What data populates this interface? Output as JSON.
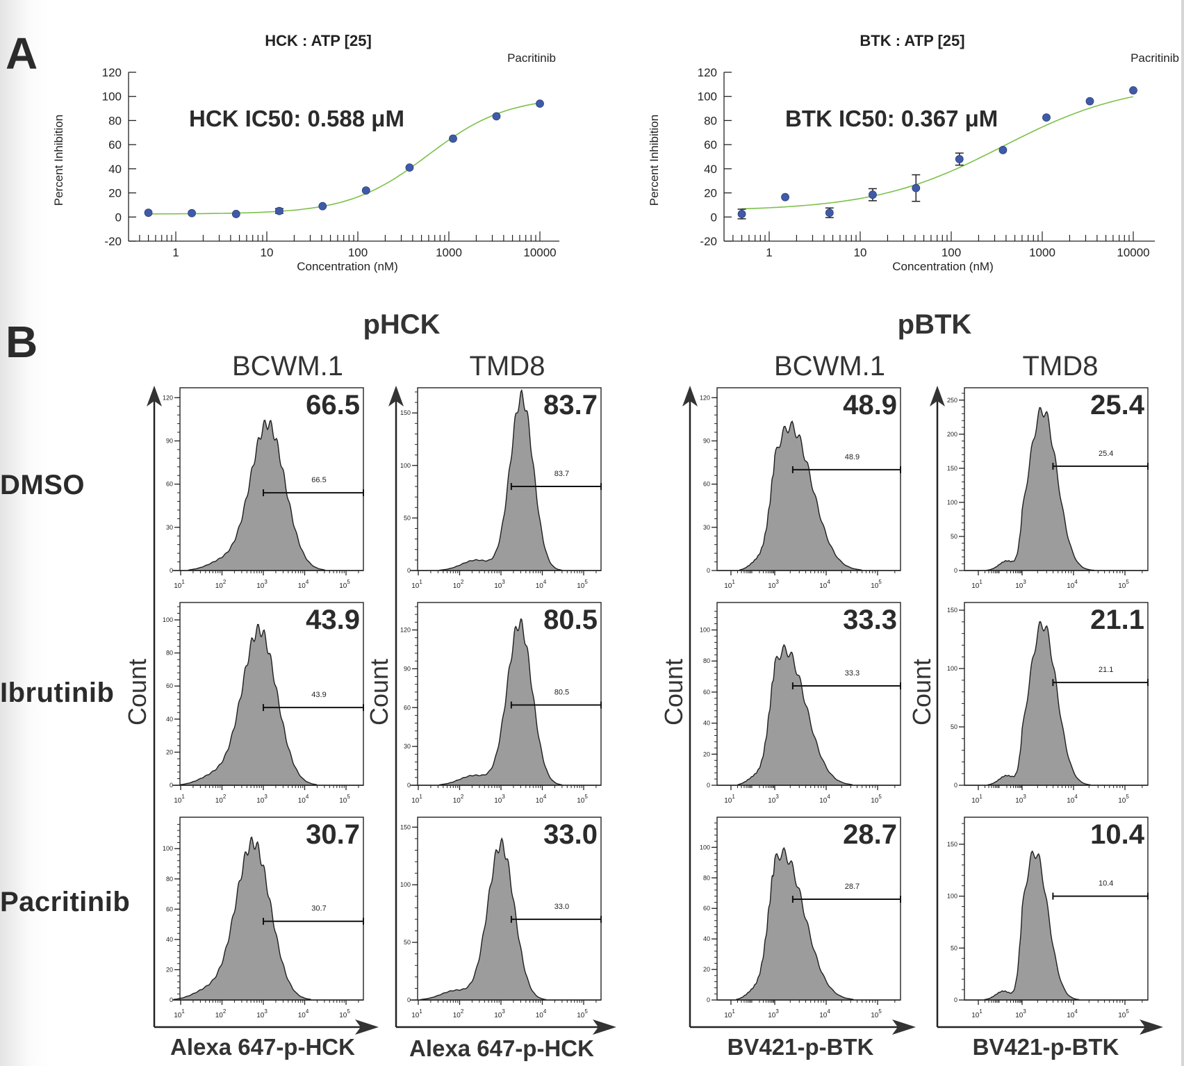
{
  "panel_labels": {
    "a": "A",
    "b": "B"
  },
  "panel_a": {
    "charts": [
      {
        "id": "hck",
        "title": "HCK  :  ATP  [25]",
        "legend_label": "Pacritinib",
        "annotation": "HCK IC50: 0.588 μM",
        "ylabel": "Percent   Inhibition",
        "xlabel": "Concentration  (nM)",
        "yticks": [
          "120",
          "100",
          "80",
          "60",
          "40",
          "20",
          "0",
          "-20"
        ],
        "xticks": [
          "1",
          "10",
          "100",
          "1000",
          "10000"
        ]
      },
      {
        "id": "btk",
        "title": "BTK  :  ATP  [25]",
        "legend_label": "Pacritinib",
        "annotation": "BTK IC50: 0.367 μM",
        "ylabel": "Percent   Inhibition",
        "xlabel": "Concentration  (nM)",
        "yticks": [
          "120",
          "100",
          "80",
          "60",
          "40",
          "20",
          "0",
          "-20"
        ],
        "xticks": [
          "1",
          "10",
          "100",
          "1000",
          "10000"
        ]
      }
    ]
  },
  "panel_b": {
    "groups": [
      {
        "title": "pHCK",
        "columns": [
          "BCWM.1",
          "TMD8"
        ],
        "xlabel": "Alexa 647-p-HCK"
      },
      {
        "title": "pBTK",
        "columns": [
          "BCWM.1",
          "TMD8"
        ],
        "xlabel": "BV421-p-BTK"
      }
    ],
    "rows": [
      "DMSO",
      "Ibrutinib",
      "Pacritinib"
    ],
    "count_label": "Count"
  },
  "chart_data": [
    {
      "type": "scatter",
      "title": "HCK : ATP [25]",
      "series_name": "Pacritinib",
      "annotation": "HCK IC50: 0.588 μM",
      "xlabel": "Concentration (nM)",
      "ylabel": "Percent Inhibition",
      "xscale": "log",
      "xlim": [
        0.3,
        20000
      ],
      "ylim": [
        -20,
        120
      ],
      "x": [
        0.5,
        1.5,
        4.6,
        13.7,
        41,
        123,
        370,
        1111,
        3333,
        10000
      ],
      "y": [
        3.5,
        3.2,
        2.5,
        5,
        9,
        22,
        41,
        65,
        83.5,
        94
      ],
      "yerr": [
        1,
        1,
        1,
        2,
        1,
        1,
        1,
        1,
        1,
        1
      ],
      "fit": {
        "type": "sigmoid",
        "ic50_nM": 588,
        "bottom": 2.5,
        "top": 100,
        "hill": 1.0
      }
    },
    {
      "type": "scatter",
      "title": "BTK : ATP [25]",
      "series_name": "Pacritinib",
      "annotation": "BTK IC50: 0.367 μM",
      "xlabel": "Concentration (nM)",
      "ylabel": "Percent Inhibition",
      "xscale": "log",
      "xlim": [
        0.3,
        20000
      ],
      "ylim": [
        -20,
        120
      ],
      "x": [
        0.5,
        1.5,
        4.6,
        13.7,
        41,
        123,
        370,
        1111,
        3333,
        10000
      ],
      "y": [
        2.5,
        16.5,
        3.5,
        18.5,
        24,
        48,
        55.5,
        82.5,
        96,
        105
      ],
      "yerr": [
        4,
        1,
        4,
        5,
        11,
        5,
        1,
        1,
        1,
        1
      ],
      "fit": {
        "type": "sigmoid",
        "ic50_nM": 367,
        "bottom": 5,
        "top": 112,
        "hill": 0.62
      }
    },
    {
      "type": "area",
      "group": "pHCK",
      "cell_line": "BCWM.1",
      "condition": "DMSO",
      "gate_percent": 66.5,
      "xlabel": "Alexa 647-p-HCK",
      "ylabel": "Count",
      "yticks": [
        0,
        30,
        60,
        90,
        120
      ],
      "ymax": 124,
      "xticks": [
        "10^1",
        "10^2",
        "10^3",
        "10^4",
        "10^5"
      ],
      "peak_log10": 3.1,
      "peak_count": 102,
      "sd_log10": 0.42,
      "gate_start_log10": 3.0,
      "gate_y": 54
    },
    {
      "type": "area",
      "group": "pHCK",
      "cell_line": "TMD8",
      "condition": "DMSO",
      "gate_percent": 83.7,
      "xlabel": "Alexa 647-p-HCK",
      "ylabel": "Count",
      "yticks": [
        0,
        50,
        100,
        150
      ],
      "ymax": 170,
      "xticks": [
        "10^1",
        "10^2",
        "10^3",
        "10^4",
        "10^5"
      ],
      "peak_log10": 3.5,
      "peak_count": 165,
      "sd_log10": 0.28,
      "gate_start_log10": 3.25,
      "gate_y": 80
    },
    {
      "type": "area",
      "group": "pHCK",
      "cell_line": "BCWM.1",
      "condition": "Ibrutinib",
      "gate_percent": 43.9,
      "xlabel": "Alexa 647-p-HCK",
      "ylabel": "Count",
      "yticks": [
        0,
        20,
        40,
        60,
        80,
        100
      ],
      "ymax": 108,
      "xticks": [
        "10^1",
        "10^2",
        "10^3",
        "10^4",
        "10^5"
      ],
      "peak_log10": 2.9,
      "peak_count": 94,
      "sd_log10": 0.42,
      "gate_start_log10": 3.0,
      "gate_y": 47
    },
    {
      "type": "area",
      "group": "pHCK",
      "cell_line": "TMD8",
      "condition": "Ibrutinib",
      "gate_percent": 80.5,
      "xlabel": "Alexa 647-p-HCK",
      "ylabel": "Count",
      "yticks": [
        0,
        30,
        60,
        90,
        120
      ],
      "ymax": 138,
      "xticks": [
        "10^1",
        "10^2",
        "10^3",
        "10^4",
        "10^5"
      ],
      "peak_log10": 3.45,
      "peak_count": 125,
      "sd_log10": 0.3,
      "gate_start_log10": 3.25,
      "gate_y": 62
    },
    {
      "type": "area",
      "group": "pHCK",
      "cell_line": "BCWM.1",
      "condition": "Pacritinib",
      "gate_percent": 30.7,
      "xlabel": "Alexa 647-p-HCK",
      "ylabel": "Count",
      "yticks": [
        0,
        20,
        40,
        60,
        80,
        100
      ],
      "ymax": 118,
      "xticks": [
        "10^1",
        "10^2",
        "10^3",
        "10^4",
        "10^5"
      ],
      "peak_log10": 2.75,
      "peak_count": 104,
      "sd_log10": 0.42,
      "gate_start_log10": 3.0,
      "gate_y": 52
    },
    {
      "type": "area",
      "group": "pHCK",
      "cell_line": "TMD8",
      "condition": "Pacritinib",
      "gate_percent": 33.0,
      "xlabel": "Alexa 647-p-HCK",
      "ylabel": "Count",
      "yticks": [
        0,
        50,
        100,
        150
      ],
      "ymax": 155,
      "xticks": [
        "10^1",
        "10^2",
        "10^3",
        "10^4",
        "10^5"
      ],
      "peak_log10": 3.0,
      "peak_count": 135,
      "sd_log10": 0.32,
      "gate_start_log10": 3.25,
      "gate_y": 70
    },
    {
      "type": "area",
      "group": "pBTK",
      "cell_line": "BCWM.1",
      "condition": "DMSO",
      "gate_percent": 48.9,
      "xlabel": "BV421-p-BTK",
      "ylabel": "Count",
      "yticks": [
        0,
        30,
        60,
        90,
        120
      ],
      "ymax": 124,
      "xticks": [
        "10^1",
        "10^3",
        "10^4",
        "10^5"
      ],
      "peak_log10": 3.3,
      "peak_count": 100,
      "sd_log10": 0.42,
      "gate_start_log10": 3.35,
      "gate_y": 70
    },
    {
      "type": "area",
      "group": "pBTK",
      "cell_line": "TMD8",
      "condition": "DMSO",
      "gate_percent": 25.4,
      "xlabel": "BV421-p-BTK",
      "ylabel": "Count",
      "yticks": [
        0,
        50,
        100,
        150,
        200,
        250
      ],
      "ymax": 262,
      "xticks": [
        "10^1",
        "10^3",
        "10^4",
        "10^5"
      ],
      "peak_log10": 3.4,
      "peak_count": 235,
      "sd_log10": 0.28,
      "gate_start_log10": 3.6,
      "gate_y": 153
    },
    {
      "type": "area",
      "group": "pBTK",
      "cell_line": "BCWM.1",
      "condition": "Ibrutinib",
      "gate_percent": 33.3,
      "xlabel": "BV421-p-BTK",
      "ylabel": "Count",
      "yticks": [
        0,
        20,
        40,
        60,
        80,
        100
      ],
      "ymax": 115,
      "xticks": [
        "10^1",
        "10^3",
        "10^4",
        "10^5"
      ],
      "peak_log10": 3.2,
      "peak_count": 87,
      "sd_log10": 0.4,
      "gate_start_log10": 3.35,
      "gate_y": 64
    },
    {
      "type": "area",
      "group": "pBTK",
      "cell_line": "TMD8",
      "condition": "Ibrutinib",
      "gate_percent": 21.1,
      "xlabel": "BV421-p-BTK",
      "ylabel": "Count",
      "yticks": [
        0,
        50,
        100,
        150
      ],
      "ymax": 153,
      "xticks": [
        "10^1",
        "10^3",
        "10^4",
        "10^5"
      ],
      "peak_log10": 3.4,
      "peak_count": 138,
      "sd_log10": 0.27,
      "gate_start_log10": 3.6,
      "gate_y": 88
    },
    {
      "type": "area",
      "group": "pBTK",
      "cell_line": "BCWM.1",
      "condition": "Pacritinib",
      "gate_percent": 28.7,
      "xlabel": "BV421-p-BTK",
      "ylabel": "Count",
      "yticks": [
        0,
        20,
        40,
        60,
        80,
        100
      ],
      "ymax": 117,
      "xticks": [
        "10^1",
        "10^3",
        "10^4",
        "10^5"
      ],
      "peak_log10": 3.15,
      "peak_count": 96,
      "sd_log10": 0.42,
      "gate_start_log10": 3.35,
      "gate_y": 66
    },
    {
      "type": "area",
      "group": "pBTK",
      "cell_line": "TMD8",
      "condition": "Pacritinib",
      "gate_percent": 10.4,
      "xlabel": "BV421-p-BTK",
      "ylabel": "Count",
      "yticks": [
        0,
        50,
        100,
        150
      ],
      "ymax": 172,
      "xticks": [
        "10^1",
        "10^3",
        "10^4",
        "10^5"
      ],
      "peak_log10": 3.25,
      "peak_count": 142,
      "sd_log10": 0.25,
      "gate_start_log10": 3.6,
      "gate_y": 100
    }
  ]
}
